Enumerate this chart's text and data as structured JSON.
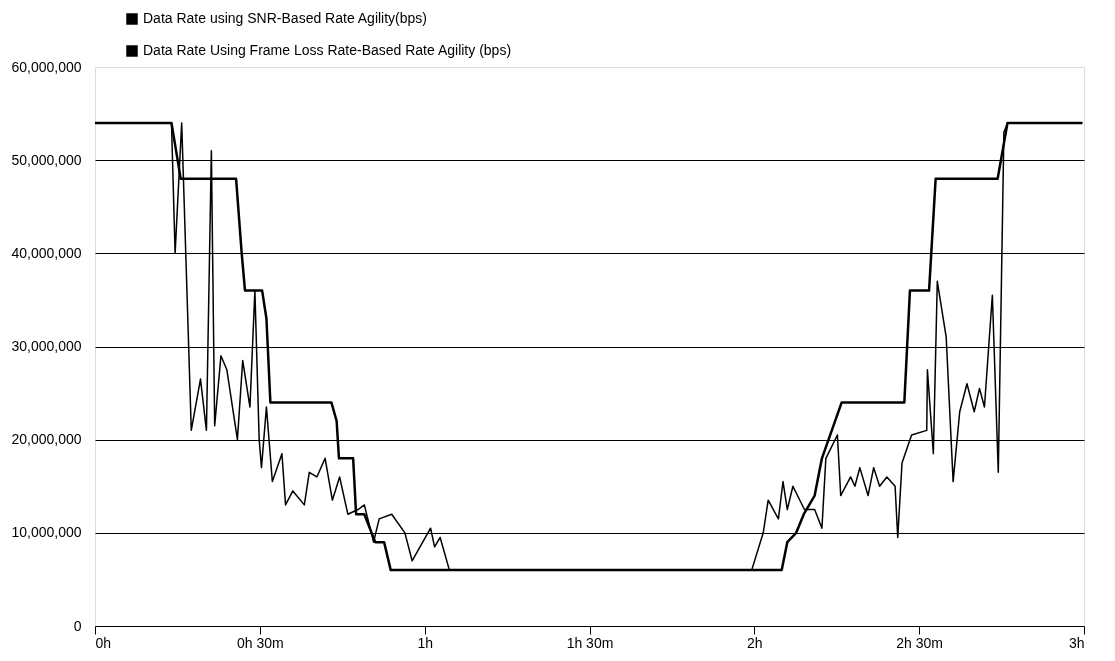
{
  "chart_data": {
    "type": "line",
    "legend": "top left",
    "grid": "y",
    "marker": "none",
    "line_style": "solid",
    "xlim": [
      0,
      3
    ],
    "xticks": [
      {
        "value": 0,
        "label": "0h"
      },
      {
        "value": 0.5,
        "label": "0h 30m"
      },
      {
        "value": 1,
        "label": "1h"
      },
      {
        "value": 1.5,
        "label": "1h 30m"
      },
      {
        "value": 2,
        "label": "2h"
      },
      {
        "value": 2.5,
        "label": "2h 30m"
      },
      {
        "value": 3,
        "label": "3h"
      }
    ],
    "ylim": [
      0,
      60000000
    ],
    "yticks": [
      0,
      {
        "value": 10000000,
        "label": "10,000,000"
      },
      {
        "value": 20000000,
        "label": "20,000,000"
      },
      {
        "value": 30000000,
        "label": "30,000,000"
      },
      {
        "value": 40000000,
        "label": "40,000,000"
      },
      {
        "value": 50000000,
        "label": "50,000,000"
      },
      {
        "value": 60000000,
        "label": "60,000,000"
      }
    ],
    "series": [
      {
        "name": "Data Rate using SNR-Based Rate Agility(bps)",
        "color": "#000000",
        "x": [
          0,
          0.232,
          0.243,
          0.263,
          0.292,
          0.32,
          0.338,
          0.353,
          0.363,
          0.382,
          0.4,
          0.432,
          0.448,
          0.47,
          0.485,
          0.498,
          0.505,
          0.52,
          0.538,
          0.567,
          0.578,
          0.6,
          0.635,
          0.65,
          0.673,
          0.698,
          0.72,
          0.742,
          0.767,
          0.798,
          0.817,
          0.845,
          0.862,
          0.9,
          0.94,
          0.962,
          1.018,
          1.03,
          1.047,
          1.075,
          1.992,
          2.027,
          2.042,
          2.073,
          2.087,
          2.1,
          2.117,
          2.152,
          2.183,
          2.205,
          2.217,
          2.252,
          2.262,
          2.292,
          2.305,
          2.32,
          2.345,
          2.362,
          2.38,
          2.402,
          2.427,
          2.435,
          2.448,
          2.477,
          2.523,
          2.525,
          2.543,
          2.555,
          2.582,
          2.603,
          2.623,
          2.645,
          2.667,
          2.683,
          2.698,
          2.722,
          2.74,
          2.757,
          2.768,
          2.995
        ],
        "values": [
          54000000,
          54000000,
          40000000,
          54000000,
          21000000,
          26500000,
          21000000,
          51000000,
          21500000,
          29000000,
          27500000,
          20000000,
          28500000,
          23500000,
          36000000,
          20000000,
          17000000,
          23500000,
          15500000,
          18500000,
          13000000,
          14500000,
          13000000,
          16500000,
          16000000,
          18000000,
          13500000,
          16000000,
          12000000,
          12500000,
          13000000,
          9000000,
          11500000,
          12000000,
          10000000,
          7000000,
          10500000,
          8500000,
          9500000,
          6000000,
          6000000,
          10000000,
          13500000,
          11500000,
          15500000,
          12500000,
          15000000,
          12500000,
          12500000,
          10500000,
          18000000,
          20500000,
          14000000,
          16000000,
          15000000,
          17000000,
          14000000,
          17000000,
          15000000,
          16000000,
          15000000,
          9500000,
          17500000,
          20500000,
          21000000,
          27500000,
          18500000,
          37000000,
          31000000,
          15500000,
          23000000,
          26000000,
          23000000,
          25500000,
          23500000,
          35500000,
          16500000,
          53000000,
          54000000,
          54000000
        ]
      },
      {
        "name": "Data Rate Using Frame Loss Rate-Based Rate Agility (bps)",
        "color": "#000000",
        "x": [
          0,
          0.232,
          0.26,
          0.428,
          0.445,
          0.455,
          0.507,
          0.52,
          0.532,
          0.717,
          0.733,
          0.74,
          0.783,
          0.792,
          0.817,
          0.85,
          0.877,
          0.897,
          2.083,
          2.1,
          2.127,
          2.15,
          2.183,
          2.205,
          2.265,
          2.455,
          2.472,
          2.53,
          2.55,
          2.738,
          2.768,
          2.995
        ],
        "values": [
          54000000,
          54000000,
          48000000,
          48000000,
          40000000,
          36000000,
          36000000,
          33000000,
          24000000,
          24000000,
          22000000,
          18000000,
          18000000,
          12000000,
          12000000,
          9000000,
          9000000,
          6000000,
          6000000,
          9000000,
          10000000,
          12000000,
          14000000,
          18000000,
          24000000,
          24000000,
          36000000,
          36000000,
          48000000,
          48000000,
          54000000,
          54000000
        ]
      }
    ]
  }
}
